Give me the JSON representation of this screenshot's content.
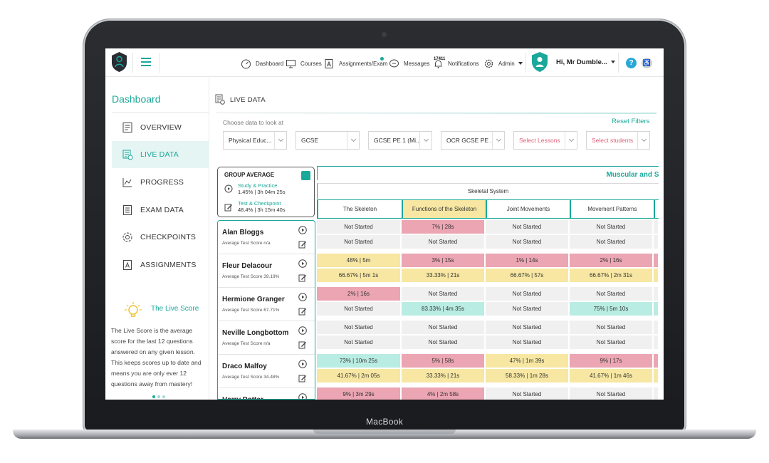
{
  "device": {
    "label": "MacBook"
  },
  "topbar": {
    "nav": [
      {
        "label": "Dashboard",
        "icon": "speedometer-icon"
      },
      {
        "label": "Courses",
        "icon": "monitor-icon"
      },
      {
        "label": "Assignments/Exam",
        "icon": "assignment-icon"
      },
      {
        "label": "Messages",
        "icon": "chat-icon"
      },
      {
        "label": "Notifications",
        "icon": "bell-icon",
        "badge": "17411"
      },
      {
        "label": "Admin",
        "icon": "gear-icon"
      }
    ],
    "greeting": "Hi, Mr Dumble...",
    "help": "?",
    "accessibility": "♿"
  },
  "sidebar": {
    "title": "Dashboard",
    "items": [
      {
        "label": "OVERVIEW",
        "icon": "overview-icon",
        "active": false
      },
      {
        "label": "LIVE DATA",
        "icon": "live-data-icon",
        "active": true
      },
      {
        "label": "PROGRESS",
        "icon": "chart-icon",
        "active": false
      },
      {
        "label": "EXAM DATA",
        "icon": "exam-icon",
        "active": false
      },
      {
        "label": "CHECKPOINTS",
        "icon": "checkpoint-icon",
        "active": false
      },
      {
        "label": "ASSIGNMENTS",
        "icon": "assignment-icon",
        "active": false
      }
    ],
    "live_score": {
      "title": "The Live Score",
      "body": "The Live Score is the average score for the last 12 questions answered on any given lesson. This keeps scores up to date and means you are only ever 12 questions away from mastery!"
    }
  },
  "main": {
    "title": "LIVE DATA",
    "filter_label": "Choose data to look at",
    "reset": "Reset Filters",
    "filters": [
      {
        "value": "Physical Educ...",
        "placeholder": false
      },
      {
        "value": "GCSE",
        "placeholder": false
      },
      {
        "value": "GCSE PE 1 (Mi...",
        "placeholder": false
      },
      {
        "value": "OCR GCSE PE ...",
        "placeholder": false
      },
      {
        "value": "Select Lessons",
        "placeholder": true
      },
      {
        "value": "Select students",
        "placeholder": true
      }
    ],
    "group_average": {
      "title": "GROUP AVERAGE",
      "study_label": "Study & Practice",
      "study_value": "1.45% | 3h 04m 25s",
      "test_label": "Test & Checkpoint",
      "test_value": "48.4% | 3h 15m 40s"
    },
    "table": {
      "group": "Muscular and Sk",
      "subgroup": "Skeletal System",
      "lessons": [
        "The Skeleton",
        "Functions of the Skeleton",
        "Joint Movements",
        "Movement Patterns"
      ],
      "highlight_lesson": 1
    },
    "students": [
      {
        "name": "Alan Bloggs",
        "score": "Average Test Score n/a",
        "rows": [
          [
            [
              "Not Started",
              "ns"
            ],
            [
              "7% | 28s",
              "pk"
            ],
            [
              "Not Started",
              "ns"
            ],
            [
              "Not Started",
              "ns"
            ]
          ],
          [
            [
              "Not Started",
              "ns"
            ],
            [
              "Not Started",
              "ns"
            ],
            [
              "Not Started",
              "ns"
            ],
            [
              "Not Started",
              "ns"
            ]
          ]
        ]
      },
      {
        "name": "Fleur Delacour",
        "score": "Average Test Score 39.19%",
        "rows": [
          [
            [
              "48% | 5m",
              "yl"
            ],
            [
              "3% | 15s",
              "pk"
            ],
            [
              "1% | 14s",
              "pk"
            ],
            [
              "2% | 16s",
              "pk"
            ]
          ],
          [
            [
              "66.67% | 5m 1s",
              "yl"
            ],
            [
              "33.33% | 21s",
              "yl"
            ],
            [
              "66.67% | 57s",
              "yl"
            ],
            [
              "66.67% | 2m 31s",
              "yl"
            ]
          ]
        ]
      },
      {
        "name": "Hermione Granger",
        "score": "Average Test Score 67.71%",
        "rows": [
          [
            [
              "2% | 16s",
              "pk"
            ],
            [
              "Not Started",
              "ns"
            ],
            [
              "Not Started",
              "ns"
            ],
            [
              "Not Started",
              "ns"
            ]
          ],
          [
            [
              "Not Started",
              "ns"
            ],
            [
              "83.33% | 4m 35s",
              "tl"
            ],
            [
              "Not Started",
              "ns"
            ],
            [
              "75% | 5m 10s",
              "tl"
            ]
          ]
        ]
      },
      {
        "name": "Neville Longbottom",
        "score": "Average Test Score n/a",
        "rows": [
          [
            [
              "Not Started",
              "ns"
            ],
            [
              "Not Started",
              "ns"
            ],
            [
              "Not Started",
              "ns"
            ],
            [
              "Not Started",
              "ns"
            ]
          ],
          [
            [
              "Not Started",
              "ns"
            ],
            [
              "Not Started",
              "ns"
            ],
            [
              "Not Started",
              "ns"
            ],
            [
              "Not Started",
              "ns"
            ]
          ]
        ]
      },
      {
        "name": "Draco Malfoy",
        "score": "Average Test Score 34.48%",
        "rows": [
          [
            [
              "73% | 10m 25s",
              "tl"
            ],
            [
              "5% | 58s",
              "pk"
            ],
            [
              "47% | 1m 39s",
              "yl"
            ],
            [
              "9% | 17s",
              "pk"
            ]
          ],
          [
            [
              "41.67% | 2m 05s",
              "yl"
            ],
            [
              "33.33% | 21s",
              "yl"
            ],
            [
              "58.33% | 1m 28s",
              "yl"
            ],
            [
              "41.67% | 1m 46s",
              "yl"
            ]
          ]
        ]
      },
      {
        "name": "Harry Potter",
        "score": "",
        "rows": [
          [
            [
              "9% | 3m 29s",
              "pk"
            ],
            [
              "4% | 2m 58s",
              "pk"
            ],
            [
              "Not Started",
              "ns"
            ],
            [
              "Not Started",
              "ns"
            ]
          ]
        ]
      }
    ]
  }
}
